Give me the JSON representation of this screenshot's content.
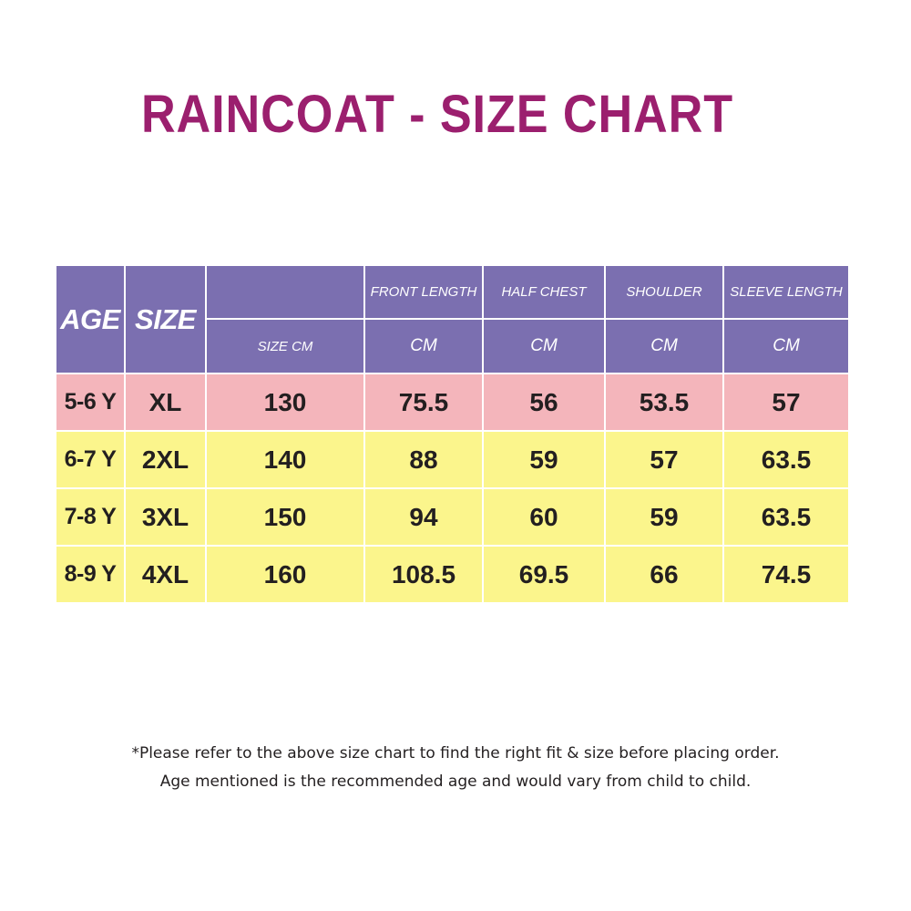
{
  "title": "RAINCOAT - SIZE CHART",
  "table": {
    "header": {
      "age": "AGE",
      "size": "SIZE",
      "size_cm": "SIZE CM",
      "columns": [
        "FRONT LENGTH",
        "HALF CHEST",
        "SHOULDER",
        "SLEEVE LENGTH"
      ],
      "units": [
        "CM",
        "CM",
        "CM",
        "CM"
      ]
    },
    "rows": [
      {
        "age": "5-6 Y",
        "size": "XL",
        "size_cm": "130",
        "front_length": "75.5",
        "half_chest": "56",
        "shoulder": "53.5",
        "sleeve_length": "57"
      },
      {
        "age": "6-7 Y",
        "size": "2XL",
        "size_cm": "140",
        "front_length": "88",
        "half_chest": "59",
        "shoulder": "57",
        "sleeve_length": "63.5"
      },
      {
        "age": "7-8 Y",
        "size": "3XL",
        "size_cm": "150",
        "front_length": "94",
        "half_chest": "60",
        "shoulder": "59",
        "sleeve_length": "63.5"
      },
      {
        "age": "8-9 Y",
        "size": "4XL",
        "size_cm": "160",
        "front_length": "108.5",
        "half_chest": "69.5",
        "shoulder": "66",
        "sleeve_length": "74.5"
      }
    ]
  },
  "footnote": {
    "line1": "*Please refer to the above size chart to find the right fit & size before placing order.",
    "line2": "Age mentioned is the recommended age and would vary from child to child."
  },
  "colors": {
    "title": "#9b1f6e",
    "header": "#7b6fb0",
    "row_pink": "#f4b5bb",
    "row_yellow": "#fbf58c"
  }
}
